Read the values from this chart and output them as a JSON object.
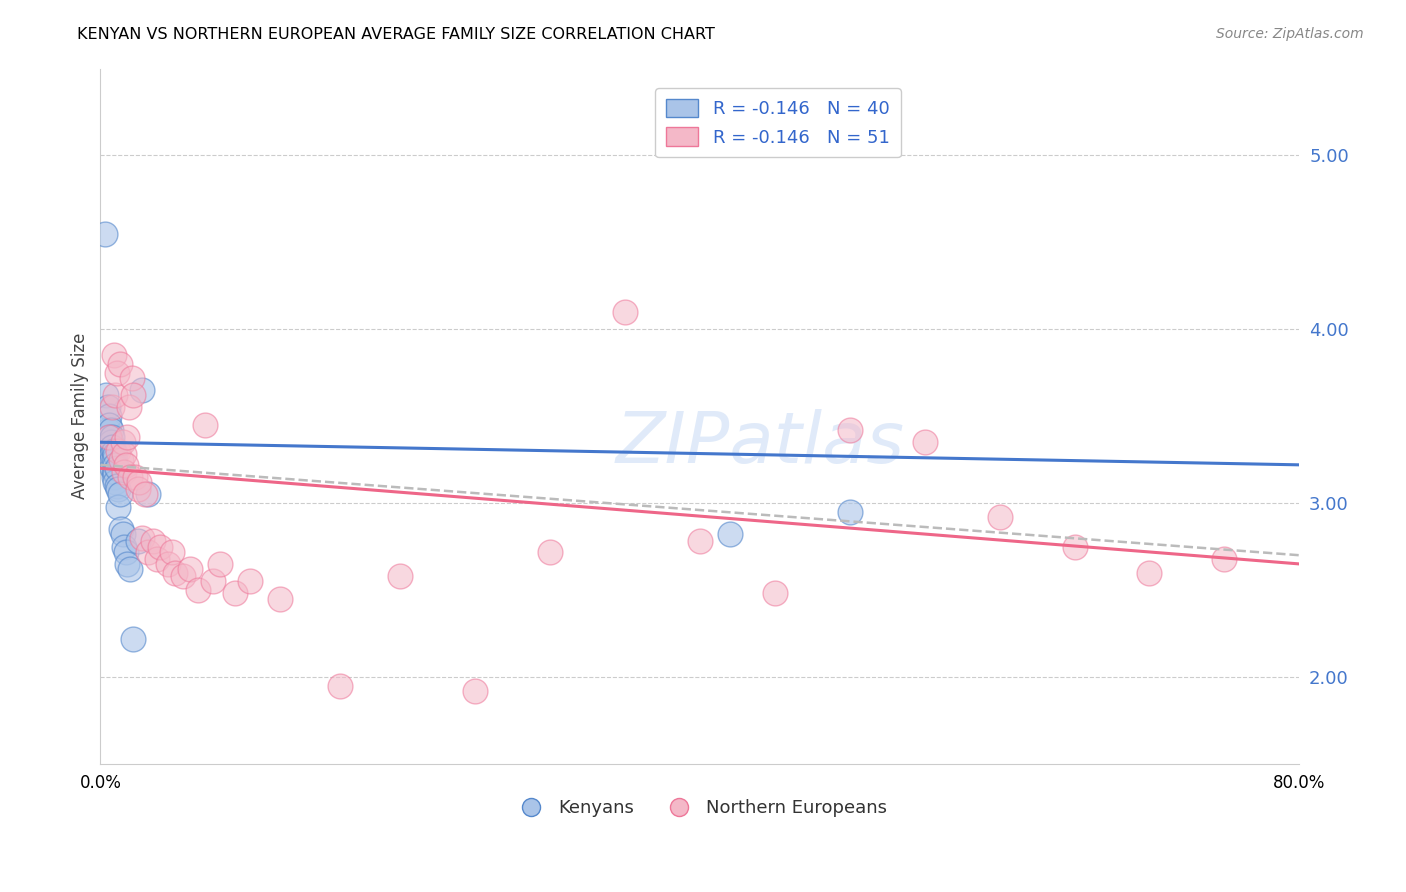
{
  "title": "KENYAN VS NORTHERN EUROPEAN AVERAGE FAMILY SIZE CORRELATION CHART",
  "source": "Source: ZipAtlas.com",
  "ylabel": "Average Family Size",
  "yticks": [
    2.0,
    3.0,
    4.0,
    5.0
  ],
  "xlim": [
    0.0,
    0.8
  ],
  "ylim": [
    1.5,
    5.5
  ],
  "legend_r_labels": [
    "R = -0.146   N = 40",
    "R = -0.146   N = 51"
  ],
  "legend_labels": [
    "Kenyans",
    "Northern Europeans"
  ],
  "watermark": "ZIPatlas",
  "blue_fill": "#aac4e8",
  "pink_fill": "#f4b8c8",
  "blue_edge": "#5588cc",
  "pink_edge": "#ee7799",
  "blue_line": "#4477cc",
  "pink_line": "#ee6688",
  "dashed_color": "#bbbbbb",
  "kenyans_x": [
    0.003,
    0.004,
    0.005,
    0.005,
    0.006,
    0.006,
    0.006,
    0.007,
    0.007,
    0.007,
    0.008,
    0.008,
    0.008,
    0.008,
    0.008,
    0.009,
    0.009,
    0.009,
    0.009,
    0.01,
    0.01,
    0.01,
    0.01,
    0.011,
    0.011,
    0.012,
    0.012,
    0.013,
    0.014,
    0.015,
    0.016,
    0.017,
    0.018,
    0.02,
    0.022,
    0.025,
    0.028,
    0.032,
    0.42,
    0.5
  ],
  "kenyans_y": [
    4.55,
    3.62,
    3.55,
    3.42,
    3.5,
    3.45,
    3.38,
    3.42,
    3.35,
    3.3,
    3.38,
    3.32,
    3.28,
    3.25,
    3.2,
    3.3,
    3.25,
    3.18,
    3.15,
    3.28,
    3.22,
    3.18,
    3.12,
    3.2,
    3.1,
    3.08,
    2.98,
    3.05,
    2.85,
    2.82,
    2.75,
    2.72,
    2.65,
    2.62,
    2.22,
    2.78,
    3.65,
    3.05,
    2.82,
    2.95
  ],
  "northern_x": [
    0.006,
    0.008,
    0.009,
    0.01,
    0.011,
    0.012,
    0.013,
    0.014,
    0.015,
    0.016,
    0.016,
    0.017,
    0.018,
    0.019,
    0.02,
    0.021,
    0.022,
    0.023,
    0.025,
    0.026,
    0.028,
    0.03,
    0.032,
    0.035,
    0.038,
    0.04,
    0.045,
    0.048,
    0.05,
    0.055,
    0.06,
    0.065,
    0.07,
    0.075,
    0.08,
    0.09,
    0.1,
    0.12,
    0.16,
    0.2,
    0.25,
    0.3,
    0.35,
    0.4,
    0.45,
    0.5,
    0.55,
    0.6,
    0.65,
    0.7,
    0.75
  ],
  "northern_y": [
    3.38,
    3.55,
    3.85,
    3.62,
    3.75,
    3.3,
    3.8,
    3.25,
    3.35,
    3.28,
    3.18,
    3.22,
    3.38,
    3.55,
    3.15,
    3.72,
    3.62,
    3.15,
    3.08,
    3.12,
    2.8,
    3.05,
    2.72,
    2.78,
    2.68,
    2.75,
    2.65,
    2.72,
    2.6,
    2.58,
    2.62,
    2.5,
    3.45,
    2.55,
    2.65,
    2.48,
    2.55,
    2.45,
    1.95,
    2.58,
    1.92,
    2.72,
    4.1,
    2.78,
    2.48,
    3.42,
    3.35,
    2.92,
    2.75,
    2.6,
    2.68
  ]
}
